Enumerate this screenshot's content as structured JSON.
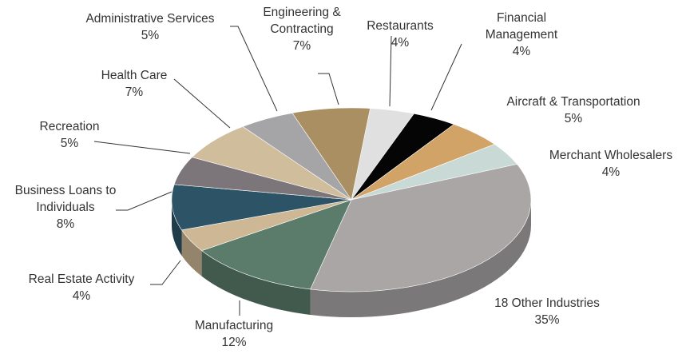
{
  "chart_data": {
    "type": "pie",
    "categories": [
      "Restaurants",
      "Financial Management",
      "Aircraft & Transportation",
      "Merchant Wholesalers",
      "18 Other Industries",
      "Manufacturing",
      "Real Estate Activity",
      "Business Loans to Individuals",
      "Recreation",
      "Health Care",
      "Administrative Services",
      "Engineering & Contracting"
    ],
    "values": [
      4,
      4,
      5,
      4,
      35,
      12,
      4,
      8,
      5,
      7,
      5,
      7
    ],
    "value_labels": [
      "4%",
      "4%",
      "5%",
      "4%",
      "35%",
      "12%",
      "4%",
      "8%",
      "5%",
      "7%",
      "5%",
      "7%"
    ],
    "colors": [
      "#e0e0e0",
      "#050505",
      "#d2a366",
      "#c9d9d5",
      "#aaa6a6",
      "#5b7b6b",
      "#cdb795",
      "#2d5466",
      "#7c7579",
      "#d0bd9c",
      "#a5a5a8",
      "#a98f62"
    ]
  }
}
